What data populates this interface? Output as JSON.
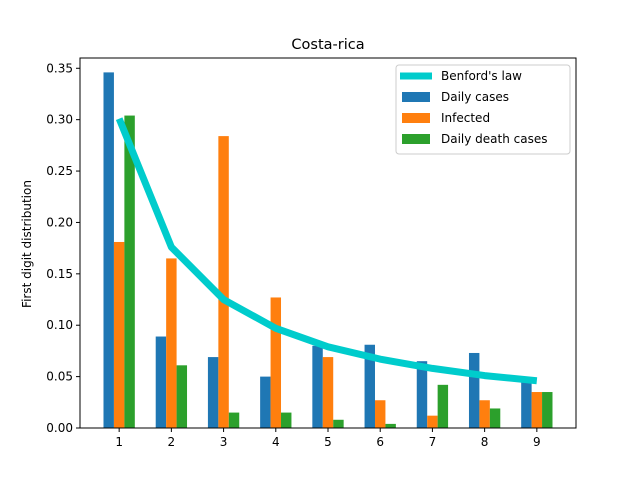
{
  "chart_data": {
    "type": "bar",
    "title": "Costa-rica",
    "xlabel": "",
    "ylabel": "First digit distribution",
    "categories": [
      "1",
      "2",
      "3",
      "4",
      "5",
      "6",
      "7",
      "8",
      "9"
    ],
    "x": [
      1,
      2,
      3,
      4,
      5,
      6,
      7,
      8,
      9
    ],
    "ylim": [
      0,
      0.36
    ],
    "yticks": [
      "0.00",
      "0.05",
      "0.10",
      "0.15",
      "0.20",
      "0.25",
      "0.30",
      "0.35"
    ],
    "ytick_values": [
      0,
      0.05,
      0.1,
      0.15,
      0.2,
      0.25,
      0.3,
      0.35
    ],
    "grid": false,
    "legend_position": "top-right",
    "line": {
      "name": "Benford's law",
      "type": "line",
      "color": "#00cccc",
      "values": [
        0.301,
        0.176,
        0.125,
        0.097,
        0.079,
        0.067,
        0.058,
        0.051,
        0.046
      ]
    },
    "series": [
      {
        "name": "Daily cases",
        "color": "#1f77b4",
        "values": [
          0.346,
          0.089,
          0.069,
          0.05,
          0.08,
          0.081,
          0.065,
          0.073,
          0.045
        ]
      },
      {
        "name": "Infected",
        "color": "#ff7f0e",
        "values": [
          0.181,
          0.165,
          0.284,
          0.127,
          0.069,
          0.027,
          0.012,
          0.027,
          0.035
        ]
      },
      {
        "name": "Daily death cases",
        "color": "#2ca02c",
        "values": [
          0.304,
          0.061,
          0.015,
          0.015,
          0.008,
          0.004,
          0.042,
          0.019,
          0.035
        ]
      }
    ]
  }
}
